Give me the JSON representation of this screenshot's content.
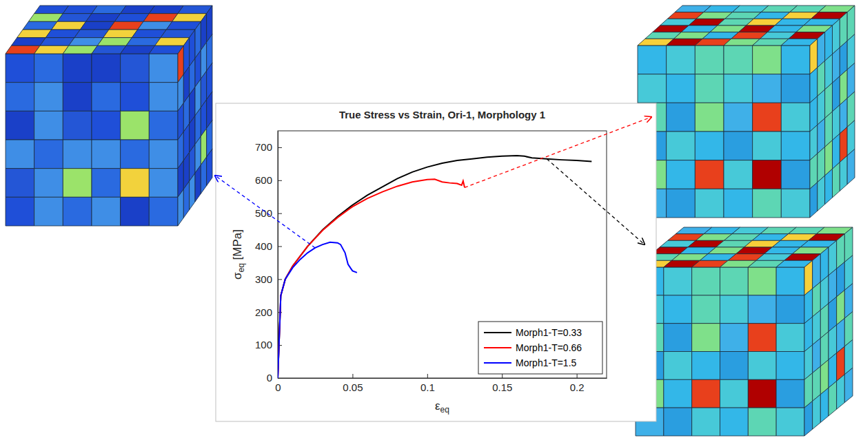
{
  "chart_data": {
    "type": "line",
    "title": "True Stress vs Strain, Ori-1, Morphology 1",
    "x_label": "εeq",
    "y_label": "σeq [MPa]",
    "xlim": [
      0,
      0.22
    ],
    "xticks": [
      0,
      0.05,
      0.1,
      0.15,
      0.2
    ],
    "ylim": [
      0,
      750
    ],
    "yticks": [
      0,
      100,
      200,
      300,
      400,
      500,
      600,
      700
    ],
    "legend": "lower right",
    "grid": false,
    "series": [
      {
        "name": "Morph1-T=0.33",
        "color": "#000000",
        "x": [
          0,
          0.002,
          0.005,
          0.01,
          0.02,
          0.03,
          0.04,
          0.05,
          0.06,
          0.07,
          0.08,
          0.09,
          0.1,
          0.11,
          0.12,
          0.13,
          0.14,
          0.15,
          0.16,
          0.165,
          0.17,
          0.18,
          0.19,
          0.2,
          0.21
        ],
        "values": [
          0,
          250,
          300,
          340,
          400,
          450,
          490,
          525,
          555,
          580,
          605,
          625,
          640,
          652,
          660,
          665,
          670,
          673,
          675,
          673,
          668,
          665,
          662,
          660,
          657
        ]
      },
      {
        "name": "Morph1-T=0.66",
        "color": "#ff0000",
        "x": [
          0,
          0.002,
          0.005,
          0.01,
          0.02,
          0.03,
          0.04,
          0.05,
          0.06,
          0.07,
          0.08,
          0.09,
          0.1,
          0.105,
          0.11,
          0.115,
          0.12,
          0.123,
          0.124,
          0.125
        ],
        "values": [
          0,
          250,
          300,
          340,
          400,
          448,
          487,
          520,
          545,
          565,
          582,
          595,
          602,
          603,
          595,
          592,
          590,
          585,
          598,
          578
        ]
      },
      {
        "name": "Morph1-T=1.5",
        "color": "#0000ff",
        "x": [
          0,
          0.002,
          0.005,
          0.01,
          0.015,
          0.02,
          0.025,
          0.03,
          0.035,
          0.04,
          0.042,
          0.045,
          0.047,
          0.05,
          0.053
        ],
        "values": [
          0,
          250,
          300,
          335,
          360,
          380,
          395,
          405,
          412,
          410,
          405,
          380,
          345,
          325,
          320
        ]
      }
    ]
  }
}
